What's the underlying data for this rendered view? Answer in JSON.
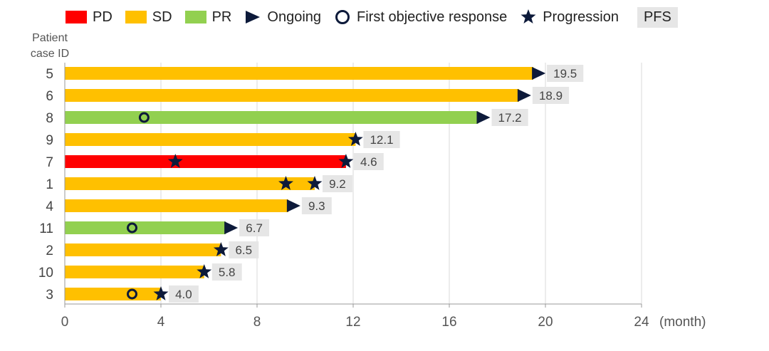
{
  "legend": {
    "pd": "PD",
    "sd": "SD",
    "pr": "PR",
    "ongoing": "Ongoing",
    "response": "First objective response",
    "progression": "Progression",
    "pfs": "PFS"
  },
  "colors": {
    "PD": "#ff0000",
    "SD": "#ffc000",
    "PR": "#92d050",
    "marker": "#0d1a3a",
    "label_bg": "#e6e6e6",
    "grid": "#d9d9d9"
  },
  "chart_data": {
    "type": "bar",
    "orientation": "horizontal",
    "y_title": [
      "Patient",
      "case ID"
    ],
    "x_unit": "(month)",
    "xlim": [
      0,
      24
    ],
    "x_ticks": [
      0,
      4,
      8,
      12,
      16,
      20,
      24
    ],
    "grid": true,
    "patients": [
      {
        "id": "5",
        "response": "SD",
        "end": 19.5,
        "pfs": "19.5",
        "ongoing": true,
        "first_response": null,
        "progression": []
      },
      {
        "id": "6",
        "response": "SD",
        "end": 18.9,
        "pfs": "18.9",
        "ongoing": true,
        "first_response": null,
        "progression": []
      },
      {
        "id": "8",
        "response": "PR",
        "end": 17.2,
        "pfs": "17.2",
        "ongoing": true,
        "first_response": 3.3,
        "progression": []
      },
      {
        "id": "9",
        "response": "SD",
        "end": 12.1,
        "pfs": "12.1",
        "ongoing": false,
        "first_response": null,
        "progression": [
          12.1
        ]
      },
      {
        "id": "7",
        "response": "PD",
        "end": 11.7,
        "pfs": "4.6",
        "ongoing": false,
        "first_response": null,
        "progression": [
          4.6,
          11.7
        ]
      },
      {
        "id": "1",
        "response": "SD",
        "end": 10.4,
        "pfs": "9.2",
        "ongoing": false,
        "first_response": null,
        "progression": [
          9.2,
          10.4
        ]
      },
      {
        "id": "4",
        "response": "SD",
        "end": 9.3,
        "pfs": "9.3",
        "ongoing": true,
        "first_response": null,
        "progression": []
      },
      {
        "id": "11",
        "response": "PR",
        "end": 6.7,
        "pfs": "6.7",
        "ongoing": true,
        "first_response": 2.8,
        "progression": []
      },
      {
        "id": "2",
        "response": "SD",
        "end": 6.5,
        "pfs": "6.5",
        "ongoing": false,
        "first_response": null,
        "progression": [
          6.5
        ]
      },
      {
        "id": "10",
        "response": "SD",
        "end": 5.8,
        "pfs": "5.8",
        "ongoing": false,
        "first_response": null,
        "progression": [
          5.8
        ]
      },
      {
        "id": "3",
        "response": "SD",
        "end": 4.0,
        "pfs": "4.0",
        "ongoing": false,
        "first_response": 2.8,
        "progression": [
          4.0
        ]
      }
    ]
  }
}
